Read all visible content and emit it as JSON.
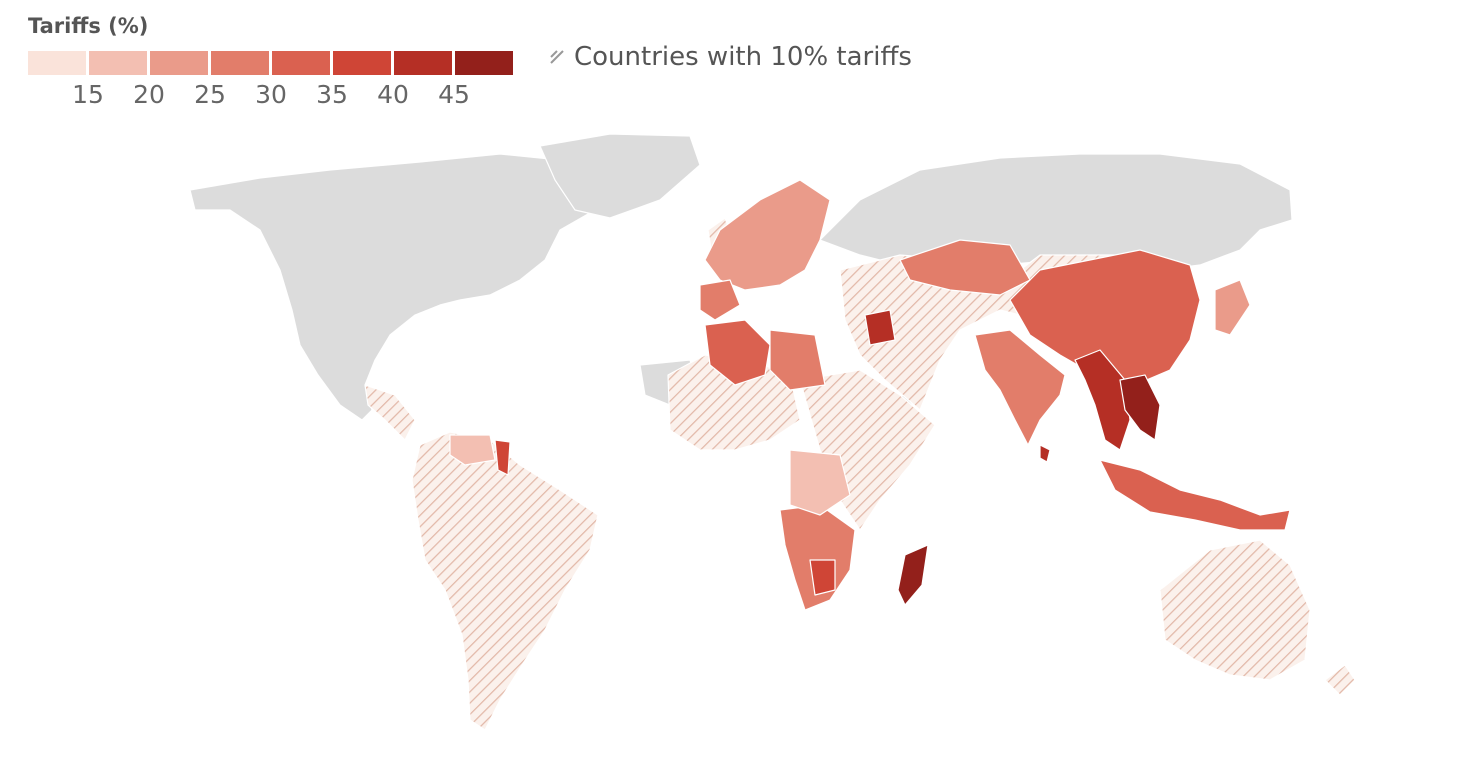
{
  "legend": {
    "title": "Tariffs (%)",
    "bins": [
      {
        "color": "#fae3da"
      },
      {
        "color": "#f3bfb2",
        "label": "15"
      },
      {
        "color": "#ea9b8a",
        "label": "20"
      },
      {
        "color": "#e27d6a",
        "label": "25"
      },
      {
        "color": "#da6150",
        "label": "30"
      },
      {
        "color": "#cf4536",
        "label": "35"
      },
      {
        "color": "#b52f25",
        "label": "40"
      },
      {
        "color": "#93201b",
        "label": "45"
      }
    ],
    "hatch_label": "Countries with 10% tariffs"
  },
  "colors": {
    "land": "#dcdcdc",
    "hatch": "#e2b8a8",
    "hatch_bg": "#fbf1ec",
    "border": "#ffffff"
  }
}
